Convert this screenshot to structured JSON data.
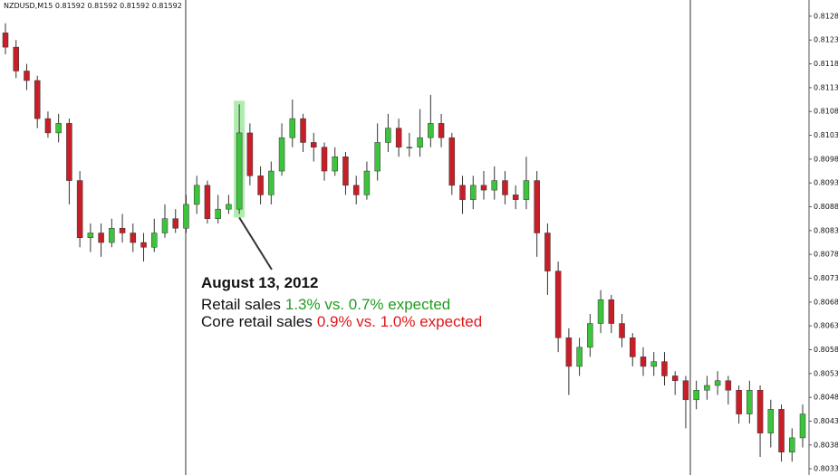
{
  "chart_data": {
    "type": "candlestick",
    "title": "NZDUSD,M15  0.81592 0.81592 0.81592 0.81592",
    "ylim": [
      0.80322,
      0.81319
    ],
    "yticks": [
      0.81285,
      0.81235,
      0.81185,
      0.81135,
      0.81085,
      0.81035,
      0.80985,
      0.80935,
      0.80885,
      0.80835,
      0.80785,
      0.80735,
      0.80685,
      0.80635,
      0.80585,
      0.80535,
      0.80485,
      0.80435,
      0.80385,
      0.80335
    ],
    "up_color": "#3cc43c",
    "down_color": "#c81e28",
    "open": [
      0.8125,
      0.8122,
      0.8117,
      0.8115,
      0.8107,
      0.8104,
      0.8106,
      0.8094,
      0.8082,
      0.8083,
      0.8081,
      0.8084,
      0.8083,
      0.8081,
      0.808,
      0.8083,
      0.8086,
      0.8084,
      0.8089,
      0.8093,
      0.8086,
      0.8088,
      0.8088,
      0.8104,
      0.8095,
      0.8091,
      0.8096,
      0.8103,
      0.8107,
      0.8102,
      0.8101,
      0.8096,
      0.8099,
      0.8093,
      0.8091,
      0.8096,
      0.8102,
      0.8105,
      0.8101,
      0.8101,
      0.8103,
      0.8106,
      0.8103,
      0.8093,
      0.809,
      0.8093,
      0.8092,
      0.8094,
      0.8091,
      0.809,
      0.8094,
      0.8083,
      0.8075,
      0.8061,
      0.8055,
      0.8059,
      0.8064,
      0.8069,
      0.8064,
      0.8061,
      0.8057,
      0.8055,
      0.8056,
      0.8053,
      0.8052,
      0.8048,
      0.805,
      0.8051,
      0.8052,
      0.805,
      0.8045,
      0.805,
      0.8041,
      0.8046,
      0.8037,
      0.804
    ],
    "close": [
      0.8122,
      0.8117,
      0.8115,
      0.8107,
      0.8104,
      0.8106,
      0.8094,
      0.8082,
      0.8083,
      0.8081,
      0.8084,
      0.8083,
      0.8081,
      0.808,
      0.8083,
      0.8086,
      0.8084,
      0.8089,
      0.8093,
      0.8086,
      0.8088,
      0.8089,
      0.8104,
      0.8095,
      0.8091,
      0.8096,
      0.8103,
      0.8107,
      0.8102,
      0.8101,
      0.8096,
      0.8099,
      0.8093,
      0.8091,
      0.8096,
      0.8102,
      0.8105,
      0.8101,
      0.8101,
      0.8103,
      0.8106,
      0.8103,
      0.8093,
      0.809,
      0.8093,
      0.8092,
      0.8094,
      0.8091,
      0.809,
      0.8094,
      0.8083,
      0.8075,
      0.8061,
      0.8055,
      0.8059,
      0.8064,
      0.8069,
      0.8064,
      0.8061,
      0.8057,
      0.8055,
      0.8056,
      0.8053,
      0.8052,
      0.8048,
      0.805,
      0.8051,
      0.8052,
      0.805,
      0.8045,
      0.805,
      0.8041,
      0.8046,
      0.8037,
      0.804,
      0.8045
    ],
    "high": [
      0.8127,
      0.81235,
      0.81185,
      0.8116,
      0.81085,
      0.8108,
      0.8107,
      0.8096,
      0.8085,
      0.8085,
      0.8086,
      0.8087,
      0.8085,
      0.8083,
      0.8086,
      0.8089,
      0.8088,
      0.8091,
      0.8095,
      0.8094,
      0.8091,
      0.8091,
      0.811,
      0.8106,
      0.8097,
      0.8098,
      0.8106,
      0.8111,
      0.8108,
      0.8104,
      0.8102,
      0.8101,
      0.81,
      0.8095,
      0.8098,
      0.8106,
      0.8108,
      0.8107,
      0.8104,
      0.8109,
      0.8112,
      0.8108,
      0.8104,
      0.8095,
      0.8095,
      0.8096,
      0.8097,
      0.8096,
      0.8093,
      0.8099,
      0.8096,
      0.8085,
      0.8077,
      0.8063,
      0.8061,
      0.8066,
      0.8071,
      0.807,
      0.8066,
      0.8062,
      0.8059,
      0.8058,
      0.8058,
      0.8054,
      0.8053,
      0.8052,
      0.8053,
      0.8054,
      0.8053,
      0.8051,
      0.8052,
      0.8051,
      0.8048,
      0.8047,
      0.8042,
      0.8047
    ],
    "low": [
      0.81205,
      0.81155,
      0.8113,
      0.8105,
      0.8103,
      0.8102,
      0.8089,
      0.808,
      0.8079,
      0.8078,
      0.808,
      0.8081,
      0.8079,
      0.8077,
      0.8079,
      0.8082,
      0.8083,
      0.8083,
      0.8087,
      0.8085,
      0.8085,
      0.8087,
      0.8087,
      0.8093,
      0.8089,
      0.8089,
      0.8095,
      0.8101,
      0.81,
      0.8098,
      0.8094,
      0.8095,
      0.8091,
      0.8089,
      0.809,
      0.8094,
      0.81,
      0.8099,
      0.8099,
      0.8099,
      0.8101,
      0.8101,
      0.8091,
      0.8087,
      0.8088,
      0.809,
      0.809,
      0.8089,
      0.8088,
      0.8088,
      0.8078,
      0.807,
      0.8058,
      0.8049,
      0.8053,
      0.8057,
      0.8062,
      0.8062,
      0.8059,
      0.8055,
      0.8053,
      0.8053,
      0.8051,
      0.8049,
      0.8042,
      0.8046,
      0.8048,
      0.8049,
      0.8047,
      0.8043,
      0.8043,
      0.8036,
      0.8038,
      0.8035,
      0.8035,
      0.8038
    ],
    "annotation": {
      "date": "August 13, 2012",
      "line1_label": "Retail sales",
      "line1_value": "1.3% vs. 0.7% expected",
      "line1_color": "#1f9c1f",
      "line2_label": "Core retail sales",
      "line2_value": "0.9% vs. 1.0% expected",
      "line2_color": "#e0161b"
    }
  }
}
